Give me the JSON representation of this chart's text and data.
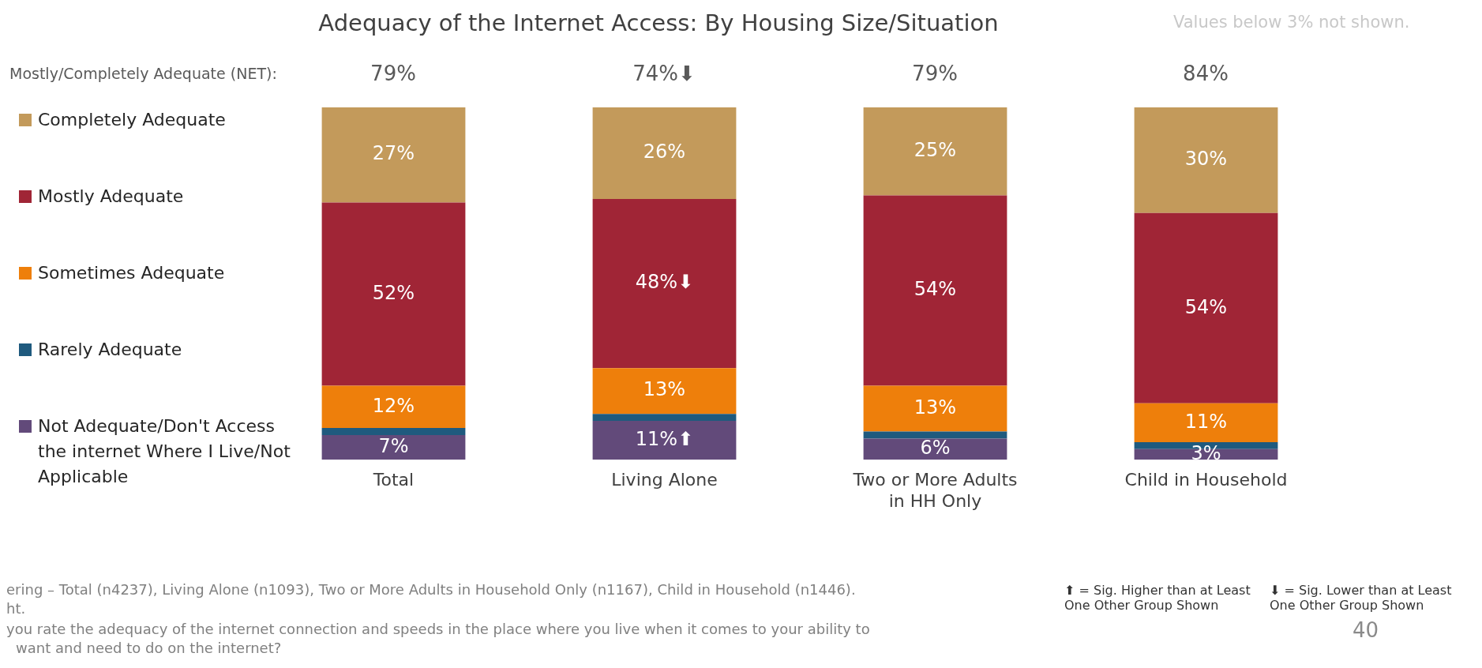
{
  "chart_data": {
    "type": "bar",
    "title": "Adequacy of the Internet Access: By Housing Size/Situation",
    "categories": [
      "Total",
      "Living Alone",
      "Two or More Adults in HH Only",
      "Child in Household"
    ],
    "stacked": true,
    "ylim": [
      0,
      100
    ],
    "tick_labels": "x",
    "grid": false,
    "legend": "left",
    "series": [
      {
        "name": "Not Adequate/Don't Access the internet Where I Live/Not Applicable",
        "color": "#624a7a",
        "values": [
          7,
          11,
          6,
          3
        ],
        "value_labels": [
          "7%",
          "11%⬆",
          "6%",
          "3%"
        ]
      },
      {
        "name": "Rarely Adequate",
        "color": "#1f5a7e",
        "values": [
          2,
          2,
          2,
          2
        ],
        "value_labels": [
          null,
          null,
          null,
          null
        ]
      },
      {
        "name": "Sometimes Adequate",
        "color": "#ee7f0b",
        "values": [
          12,
          13,
          13,
          11
        ],
        "value_labels": [
          "12%",
          "13%",
          "13%",
          "11%"
        ]
      },
      {
        "name": "Mostly Adequate",
        "color": "#a02536",
        "values": [
          52,
          48,
          54,
          54
        ],
        "value_labels": [
          "52%",
          "48%⬇",
          "54%",
          "54%"
        ]
      },
      {
        "name": "Completely Adequate",
        "color": "#c39a5b",
        "values": [
          27,
          26,
          25,
          30
        ],
        "value_labels": [
          "27%",
          "26%",
          "25%",
          "30%"
        ]
      }
    ],
    "annotations": [
      "Mostly/Completely Adequate (NET):",
      "79%",
      "74%⬇",
      "79%",
      "84%",
      "Values below 3% not shown.",
      "ering – Total (n4237), Living Alone (n1093), Two or More Adults in Household Only (n1167), Child in Household (n1446).",
      "ht.",
      "you rate the adequacy of the internet connection and speeds in the place where you live when it comes to your ability to",
      "want and need to do on the internet?",
      "⬆ = Sig. Higher than at Least One Other Group Shown",
      "⬇ = Sig. Lower than at Least One Other Group Shown",
      "40"
    ]
  }
}
